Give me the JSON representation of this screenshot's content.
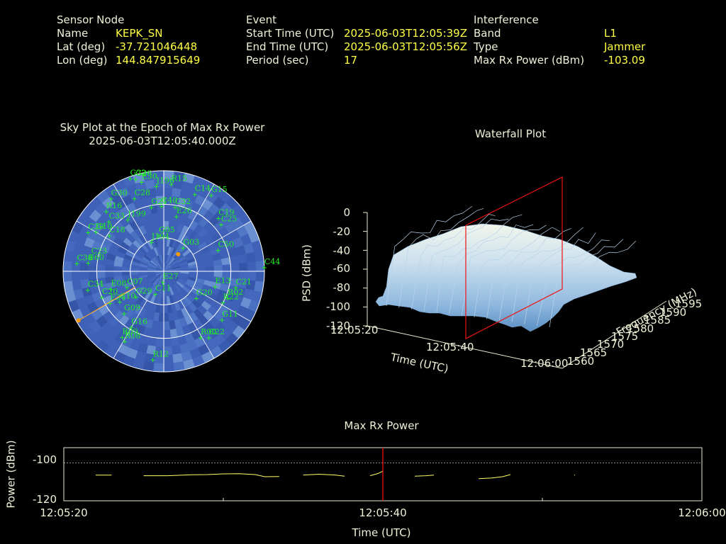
{
  "header": {
    "sensor": {
      "heading": "Sensor Node",
      "rows": [
        {
          "label": "Name",
          "value": "KEPK_SN"
        },
        {
          "label": "Lat (deg)",
          "value": "-37.721046448"
        },
        {
          "label": "Lon (deg)",
          "value": "144.847915649"
        }
      ]
    },
    "event": {
      "heading": "Event",
      "rows": [
        {
          "label": "Start Time (UTC)",
          "value": "2025-06-03T12:05:39Z"
        },
        {
          "label": "End Time (UTC)",
          "value": "2025-06-03T12:05:56Z"
        },
        {
          "label": "Period (sec)",
          "value": "17"
        }
      ]
    },
    "interference": {
      "heading": "Interference",
      "rows": [
        {
          "label": "Band",
          "value": "L1"
        },
        {
          "label": "Type",
          "value": "Jammer"
        },
        {
          "label": "Max Rx Power (dBm)",
          "value": "-103.09"
        }
      ]
    }
  },
  "colors": {
    "label": "#f0f0d8",
    "value": "#ffff44",
    "satellite": "#22ee22",
    "sky_fill": "#3f62b8",
    "marker": "#ff9900",
    "cursor": "#ee1111",
    "trace": "#ffff66"
  },
  "chart_data": [
    {
      "type": "scatter",
      "title": "Sky Plot at the Epoch of Max Rx Power",
      "subtitle": "2025-06-03T12:05:40.000Z",
      "projection": "polar",
      "radial_rings": 3,
      "satellites": [
        {
          "id": "G32",
          "az": -20,
          "el": 2
        },
        {
          "id": "G26",
          "az": -17,
          "el": 4
        },
        {
          "id": "E30",
          "az": -14,
          "el": 8
        },
        {
          "id": "J196",
          "az": -5,
          "el": 14
        },
        {
          "id": "R15",
          "az": 5,
          "el": 12
        },
        {
          "id": "C14",
          "az": 22,
          "el": 16
        },
        {
          "id": "G15",
          "az": 32,
          "el": 10
        },
        {
          "id": "G30",
          "az": -36,
          "el": 10
        },
        {
          "id": "R16",
          "az": -44,
          "el": 16
        },
        {
          "id": "C28",
          "az": -22,
          "el": 20
        },
        {
          "id": "C33",
          "az": -48,
          "el": 24
        },
        {
          "id": "J199",
          "az": -35,
          "el": 34
        },
        {
          "id": "G21",
          "az": -11,
          "el": 32
        },
        {
          "id": "C40",
          "az": -2,
          "el": 32
        },
        {
          "id": "C32",
          "az": 10,
          "el": 32
        },
        {
          "id": "E26",
          "az": 13,
          "el": 40
        },
        {
          "id": "C19",
          "az": 46,
          "el": 22
        },
        {
          "id": "C25",
          "az": 51,
          "el": 24
        },
        {
          "id": "G10",
          "az": -60,
          "el": 20
        },
        {
          "id": "C29",
          "az": -63,
          "el": 14
        },
        {
          "id": "C18",
          "az": -57,
          "el": 32
        },
        {
          "id": "G05",
          "az": -8,
          "el": 58
        },
        {
          "id": "J194",
          "az": -23,
          "el": 62
        },
        {
          "id": "G03",
          "az": 40,
          "el": 63
        },
        {
          "id": "C50",
          "az": 69,
          "el": 38
        },
        {
          "id": "C38",
          "az": -85,
          "el": 12
        },
        {
          "id": "C23",
          "az": -79,
          "el": 24
        },
        {
          "id": "C60",
          "az": -84,
          "el": 22
        },
        {
          "id": "C20",
          "az": -113,
          "el": 30
        },
        {
          "id": "C34",
          "az": -104,
          "el": 20
        },
        {
          "id": "E13",
          "az": 107,
          "el": 42
        },
        {
          "id": "C21",
          "az": 103,
          "el": 24
        },
        {
          "id": "C44",
          "az": 88,
          "el": 0
        },
        {
          "id": "C07",
          "az": -114,
          "el": 54
        },
        {
          "id": "E08",
          "az": -109,
          "el": 40
        },
        {
          "id": "C10",
          "az": -125,
          "el": 42
        },
        {
          "id": "E34",
          "az": -121,
          "el": 34
        },
        {
          "id": "G09",
          "az": -137,
          "el": 38
        },
        {
          "id": "G29",
          "az": -133,
          "el": 56
        },
        {
          "id": "C11",
          "az": -160,
          "el": 68
        },
        {
          "id": "E27",
          "az": -175,
          "el": 80
        },
        {
          "id": "G20",
          "az": 130,
          "el": 52
        },
        {
          "id": "R02",
          "az": 113,
          "el": 28
        },
        {
          "id": "R22",
          "az": 118,
          "el": 30
        },
        {
          "id": "G11",
          "az": 130,
          "el": 22
        },
        {
          "id": "G16",
          "az": -150,
          "el": 32
        },
        {
          "id": "R09",
          "az": -148,
          "el": 20
        },
        {
          "id": "R08",
          "az": -151,
          "el": 18
        },
        {
          "id": "R12",
          "az": -173,
          "el": 10
        },
        {
          "id": "R00",
          "az": 151,
          "el": 22
        },
        {
          "id": "C22",
          "az": 146,
          "el": 18
        }
      ],
      "markers": [
        {
          "az": 40,
          "el": 70
        },
        {
          "az": -120,
          "el": 2
        }
      ]
    },
    {
      "type": "area",
      "title": "Waterfall Plot",
      "projection": "3d-surface",
      "xlabel": "Time (UTC)",
      "ylabel": "Frequency (MHz)",
      "zlabel": "PSD (dBm)",
      "x_ticks": [
        "12:05:20",
        "12:05:40",
        "12:06:00"
      ],
      "y_ticks": [
        "1560",
        "1565",
        "1570",
        "1575",
        "1580",
        "1585",
        "1590",
        "1595"
      ],
      "z_ticks": [
        "0",
        "-20",
        "-40",
        "-60",
        "-80",
        "-100",
        "-120"
      ],
      "z_range": [
        -120,
        0
      ],
      "cursor_time": "12:05:40"
    },
    {
      "type": "line",
      "title": "Max Rx Power",
      "xlabel": "Time (UTC)",
      "ylabel": "Power (dBm)",
      "x_ticks": [
        "12:05:20",
        "12:05:40",
        "12:06:00"
      ],
      "y_ticks": [
        "-100",
        "-120"
      ],
      "xlim": [
        0,
        40
      ],
      "ylim": [
        -120,
        -92
      ],
      "threshold": -100,
      "cursor_x": 20,
      "series": [
        {
          "segments": [
            [
              [
                2.0,
                -106.5
              ],
              [
                3.0,
                -106.5
              ]
            ],
            [
              [
                5.0,
                -106.8
              ],
              [
                6.5,
                -106.8
              ],
              [
                8.0,
                -106.3
              ],
              [
                9.0,
                -106.2
              ],
              [
                10.0,
                -105.8
              ],
              [
                11.0,
                -105.7
              ],
              [
                12.0,
                -106.2
              ],
              [
                12.6,
                -107.3
              ],
              [
                13.5,
                -107.2
              ]
            ],
            [
              [
                15.0,
                -106.4
              ],
              [
                16.0,
                -106.0
              ],
              [
                17.0,
                -106.4
              ],
              [
                17.6,
                -107.0
              ]
            ],
            [
              [
                19.2,
                -106.8
              ],
              [
                19.7,
                -105.6
              ],
              [
                20.0,
                -104.4
              ]
            ],
            [
              [
                22.0,
                -107.0
              ],
              [
                22.7,
                -106.8
              ],
              [
                23.2,
                -106.5
              ]
            ],
            [
              [
                26.0,
                -108.3
              ],
              [
                26.8,
                -108.0
              ],
              [
                27.5,
                -107.3
              ],
              [
                28.0,
                -106.2
              ]
            ],
            [
              [
                32.0,
                -106.5
              ],
              [
                32.05,
                -106.5
              ]
            ]
          ]
        }
      ]
    }
  ]
}
